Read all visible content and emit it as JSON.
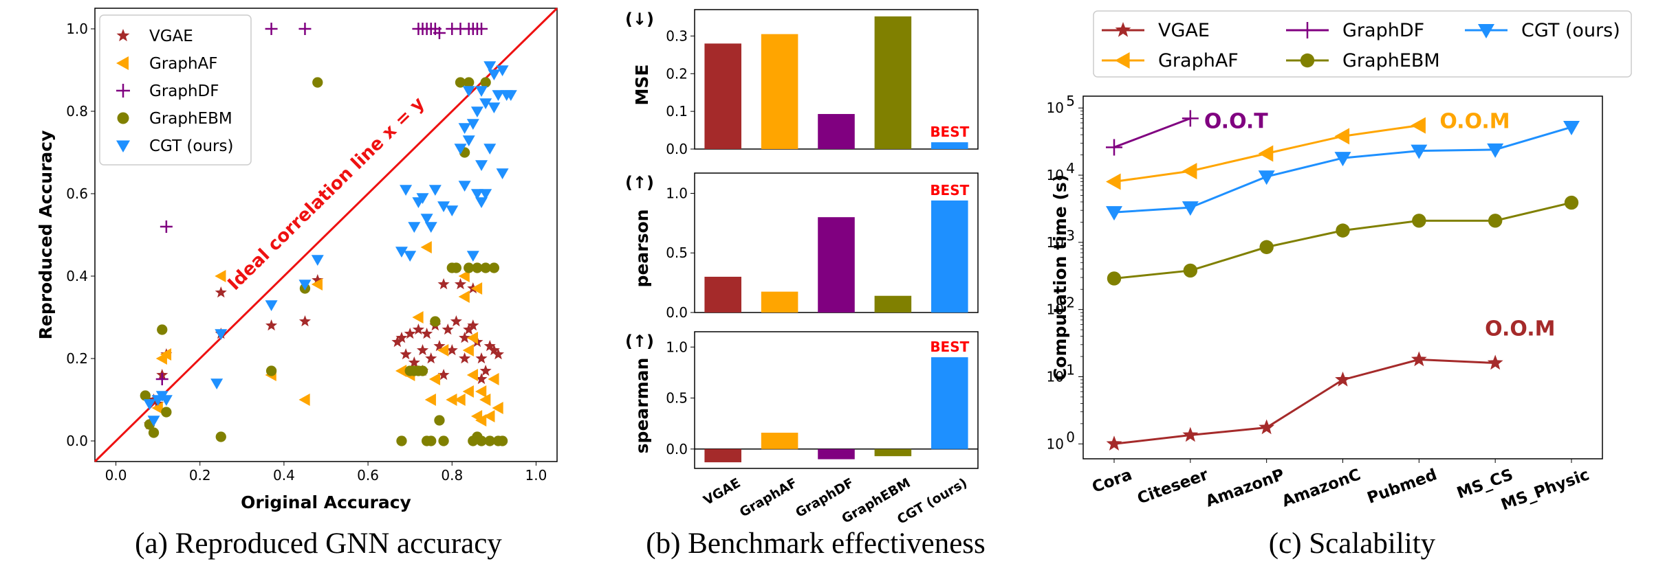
{
  "captions": {
    "a": "(a) Reproduced GNN accuracy",
    "b": "(b) Benchmark effectiveness",
    "c": "(c) Scalability"
  },
  "colors": {
    "VGAE": "#a52a2a",
    "GraphAF": "#ffa500",
    "GraphDF": "#800080",
    "GraphEBM": "#808000",
    "CGT (ours)": "#1e90ff",
    "ideal_line": "#ee1111",
    "best": "#ff0000"
  },
  "markers": {
    "VGAE": "star",
    "GraphAF": "triangle-left",
    "GraphDF": "plus",
    "GraphEBM": "circle",
    "CGT (ours)": "triangle-down"
  },
  "chart_data": [
    {
      "id": "a",
      "type": "scatter",
      "xlabel": "Original Accuracy",
      "ylabel": "Reproduced Accuracy",
      "xlim": [
        -0.05,
        1.05
      ],
      "ylim": [
        -0.05,
        1.05
      ],
      "xticks": [
        "0.0",
        "0.2",
        "0.4",
        "0.6",
        "0.8",
        "1.0"
      ],
      "yticks": [
        "0.0",
        "0.2",
        "0.4",
        "0.6",
        "0.8",
        "1.0"
      ],
      "grid": false,
      "legend_position": "top-left",
      "annotation": "Ideal correlation line x = y",
      "series": [
        {
          "name": "VGAE",
          "points": [
            [
              0.08,
              0.04
            ],
            [
              0.09,
              0.1
            ],
            [
              0.1,
              0.09
            ],
            [
              0.11,
              0.16
            ],
            [
              0.12,
              0.21
            ],
            [
              0.25,
              0.36
            ],
            [
              0.25,
              0.26
            ],
            [
              0.37,
              0.28
            ],
            [
              0.45,
              0.29
            ],
            [
              0.48,
              0.39
            ],
            [
              0.67,
              0.24
            ],
            [
              0.68,
              0.25
            ],
            [
              0.69,
              0.21
            ],
            [
              0.7,
              0.26
            ],
            [
              0.71,
              0.19
            ],
            [
              0.72,
              0.27
            ],
            [
              0.73,
              0.22
            ],
            [
              0.74,
              0.26
            ],
            [
              0.75,
              0.2
            ],
            [
              0.76,
              0.28
            ],
            [
              0.77,
              0.23
            ],
            [
              0.78,
              0.38
            ],
            [
              0.79,
              0.27
            ],
            [
              0.8,
              0.22
            ],
            [
              0.81,
              0.29
            ],
            [
              0.82,
              0.38
            ],
            [
              0.83,
              0.25
            ],
            [
              0.84,
              0.27
            ],
            [
              0.85,
              0.37
            ],
            [
              0.86,
              0.24
            ],
            [
              0.87,
              0.2
            ],
            [
              0.88,
              0.17
            ],
            [
              0.89,
              0.23
            ],
            [
              0.9,
              0.22
            ],
            [
              0.91,
              0.21
            ],
            [
              0.87,
              0.15
            ],
            [
              0.85,
              0.28
            ],
            [
              0.83,
              0.2
            ],
            [
              0.73,
              0.17
            ],
            [
              0.78,
              0.16
            ]
          ]
        },
        {
          "name": "GraphAF",
          "points": [
            [
              0.1,
              0.08
            ],
            [
              0.11,
              0.2
            ],
            [
              0.12,
              0.21
            ],
            [
              0.25,
              0.4
            ],
            [
              0.37,
              0.16
            ],
            [
              0.45,
              0.1
            ],
            [
              0.48,
              0.38
            ],
            [
              0.68,
              0.17
            ],
            [
              0.7,
              0.16
            ],
            [
              0.72,
              0.3
            ],
            [
              0.74,
              0.47
            ],
            [
              0.75,
              0.1
            ],
            [
              0.76,
              0.15
            ],
            [
              0.78,
              0.22
            ],
            [
              0.8,
              0.1
            ],
            [
              0.82,
              0.1
            ],
            [
              0.83,
              0.35
            ],
            [
              0.84,
              0.12
            ],
            [
              0.85,
              0.25
            ],
            [
              0.86,
              0.06
            ],
            [
              0.86,
              0.37
            ],
            [
              0.87,
              0.05
            ],
            [
              0.88,
              0.1
            ],
            [
              0.9,
              0.15
            ],
            [
              0.91,
              0.08
            ],
            [
              0.85,
              0.16
            ],
            [
              0.84,
              0.22
            ],
            [
              0.83,
              0.4
            ],
            [
              0.87,
              0.12
            ],
            [
              0.89,
              0.06
            ]
          ]
        },
        {
          "name": "GraphDF",
          "points": [
            [
              0.11,
              0.15
            ],
            [
              0.12,
              0.52
            ],
            [
              0.37,
              1.0
            ],
            [
              0.45,
              1.0
            ],
            [
              0.72,
              1.0
            ],
            [
              0.73,
              1.0
            ],
            [
              0.74,
              1.0
            ],
            [
              0.75,
              1.0
            ],
            [
              0.76,
              1.0
            ],
            [
              0.77,
              0.99
            ],
            [
              0.8,
              1.0
            ],
            [
              0.82,
              1.0
            ],
            [
              0.84,
              1.0
            ],
            [
              0.85,
              1.0
            ],
            [
              0.86,
              1.0
            ],
            [
              0.87,
              1.0
            ]
          ]
        },
        {
          "name": "GraphEBM",
          "points": [
            [
              0.07,
              0.11
            ],
            [
              0.08,
              0.04
            ],
            [
              0.09,
              0.02
            ],
            [
              0.11,
              0.27
            ],
            [
              0.12,
              0.07
            ],
            [
              0.25,
              0.01
            ],
            [
              0.37,
              0.17
            ],
            [
              0.45,
              0.37
            ],
            [
              0.48,
              0.87
            ],
            [
              0.68,
              0.0
            ],
            [
              0.7,
              0.17
            ],
            [
              0.71,
              0.17
            ],
            [
              0.72,
              0.17
            ],
            [
              0.73,
              0.17
            ],
            [
              0.74,
              0.0
            ],
            [
              0.75,
              0.0
            ],
            [
              0.76,
              0.29
            ],
            [
              0.77,
              0.05
            ],
            [
              0.78,
              0.0
            ],
            [
              0.8,
              0.42
            ],
            [
              0.81,
              0.42
            ],
            [
              0.82,
              0.87
            ],
            [
              0.83,
              0.7
            ],
            [
              0.84,
              0.87
            ],
            [
              0.84,
              0.42
            ],
            [
              0.85,
              0.0
            ],
            [
              0.86,
              0.01
            ],
            [
              0.86,
              0.42
            ],
            [
              0.87,
              0.0
            ],
            [
              0.88,
              0.42
            ],
            [
              0.89,
              0.0
            ],
            [
              0.9,
              0.42
            ],
            [
              0.91,
              0.0
            ],
            [
              0.92,
              0.0
            ],
            [
              0.88,
              0.87
            ]
          ]
        },
        {
          "name": "CGT (ours)",
          "points": [
            [
              0.08,
              0.09
            ],
            [
              0.09,
              0.05
            ],
            [
              0.1,
              0.1
            ],
            [
              0.11,
              0.11
            ],
            [
              0.12,
              0.1
            ],
            [
              0.24,
              0.14
            ],
            [
              0.25,
              0.26
            ],
            [
              0.37,
              0.33
            ],
            [
              0.45,
              0.38
            ],
            [
              0.48,
              0.44
            ],
            [
              0.68,
              0.46
            ],
            [
              0.69,
              0.61
            ],
            [
              0.7,
              0.45
            ],
            [
              0.71,
              0.52
            ],
            [
              0.72,
              0.58
            ],
            [
              0.73,
              0.59
            ],
            [
              0.74,
              0.54
            ],
            [
              0.75,
              0.52
            ],
            [
              0.76,
              0.61
            ],
            [
              0.78,
              0.57
            ],
            [
              0.8,
              0.56
            ],
            [
              0.82,
              0.71
            ],
            [
              0.83,
              0.62
            ],
            [
              0.84,
              0.73
            ],
            [
              0.85,
              0.77
            ],
            [
              0.86,
              0.8
            ],
            [
              0.87,
              0.85
            ],
            [
              0.88,
              0.82
            ],
            [
              0.89,
              0.91
            ],
            [
              0.9,
              0.89
            ],
            [
              0.91,
              0.84
            ],
            [
              0.92,
              0.9
            ],
            [
              0.93,
              0.84
            ],
            [
              0.94,
              0.84
            ],
            [
              0.86,
              0.6
            ],
            [
              0.85,
              0.45
            ],
            [
              0.87,
              0.67
            ],
            [
              0.88,
              0.6
            ],
            [
              0.92,
              0.65
            ],
            [
              0.83,
              0.76
            ],
            [
              0.84,
              0.85
            ],
            [
              0.9,
              0.81
            ],
            [
              0.87,
              0.58
            ],
            [
              0.89,
              0.71
            ]
          ]
        }
      ]
    },
    {
      "id": "b",
      "type": "bar",
      "categories": [
        "VGAE",
        "GraphAF",
        "GraphDF",
        "GraphEBM",
        "CGT (ours)"
      ],
      "panels": [
        {
          "ylabel": "MSE",
          "arrow": "(↓)",
          "values": [
            0.28,
            0.305,
            0.093,
            0.352,
            0.018
          ],
          "ylim": [
            0,
            0.37
          ],
          "yticks": [
            {
              "v": 0.0,
              "t": "0.0"
            },
            {
              "v": 0.1,
              "t": "0.1"
            },
            {
              "v": 0.2,
              "t": "0.2"
            },
            {
              "v": 0.3,
              "t": "0.3"
            }
          ],
          "best_index": 4,
          "best_label": "BEST"
        },
        {
          "ylabel": "pearson",
          "arrow": "(↑)",
          "values": [
            0.3,
            0.175,
            0.8,
            0.14,
            0.94
          ],
          "ylim": [
            0,
            1.17
          ],
          "yticks": [
            {
              "v": 0.0,
              "t": "0.0"
            },
            {
              "v": 0.5,
              "t": "0.5"
            },
            {
              "v": 1.0,
              "t": "1.0"
            }
          ],
          "best_index": 4,
          "best_label": "BEST"
        },
        {
          "ylabel": "spearman",
          "arrow": "(↑)",
          "values": [
            -0.13,
            0.16,
            -0.1,
            -0.07,
            0.9
          ],
          "ylim": [
            -0.19,
            1.15
          ],
          "yticks": [
            {
              "v": 0.0,
              "t": "0.0"
            },
            {
              "v": 0.5,
              "t": "0.5"
            },
            {
              "v": 1.0,
              "t": "1.0"
            }
          ],
          "best_index": 4,
          "best_label": "BEST"
        }
      ]
    },
    {
      "id": "c",
      "type": "line",
      "ylabel": "Computation time (s)",
      "yscale": "log",
      "ylim": [
        0.6,
        150000
      ],
      "ytick_values": [
        1,
        10,
        100,
        1000,
        10000,
        100000
      ],
      "ytick_bases": [
        "10",
        "10",
        "10",
        "10",
        "10",
        "10"
      ],
      "ytick_exps": [
        "0",
        "1",
        "2",
        "3",
        "4",
        "5"
      ],
      "categories": [
        "Cora",
        "Citeseer",
        "AmazonP",
        "AmazonC",
        "Pubmed",
        "MS_CS",
        "MS_Physic"
      ],
      "legend_position": "top",
      "series": [
        {
          "name": "VGAE",
          "values": [
            1.0,
            1.35,
            1.75,
            9.0,
            18.0,
            16.0,
            null
          ],
          "end_label": "O.O.M"
        },
        {
          "name": "GraphAF",
          "values": [
            8000,
            11500,
            21000,
            38000,
            55000,
            null,
            null
          ],
          "end_label": "O.O.M"
        },
        {
          "name": "GraphDF",
          "values": [
            26000,
            70000,
            null,
            null,
            null,
            null,
            null
          ],
          "end_label": "O.O.T"
        },
        {
          "name": "GraphEBM",
          "values": [
            290,
            380,
            850,
            1500,
            2100,
            2100,
            3900
          ],
          "end_label": ""
        },
        {
          "name": "CGT (ours)",
          "values": [
            2800,
            3300,
            9500,
            18000,
            23000,
            24000,
            52000
          ],
          "end_label": ""
        }
      ]
    }
  ]
}
